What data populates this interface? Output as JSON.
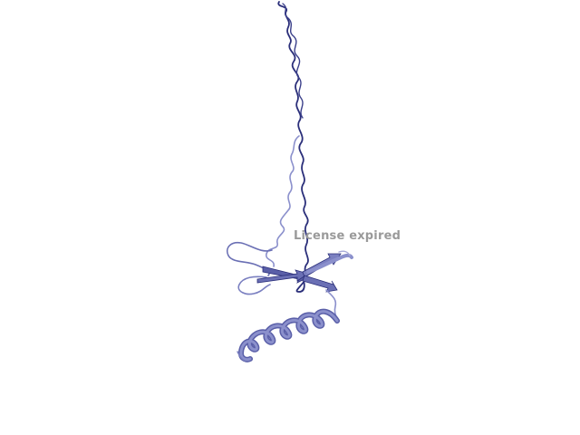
{
  "viewer": {
    "background": "#ffffff",
    "watermark_text": "License expired",
    "watermark_color": "#9a9a9a",
    "colors": {
      "ribbon_dark": "#2b2f7a",
      "ribbon_mid": "#5a5fa8",
      "ribbon_light": "#8b90cc",
      "coil_light": "#a9acd8"
    }
  }
}
